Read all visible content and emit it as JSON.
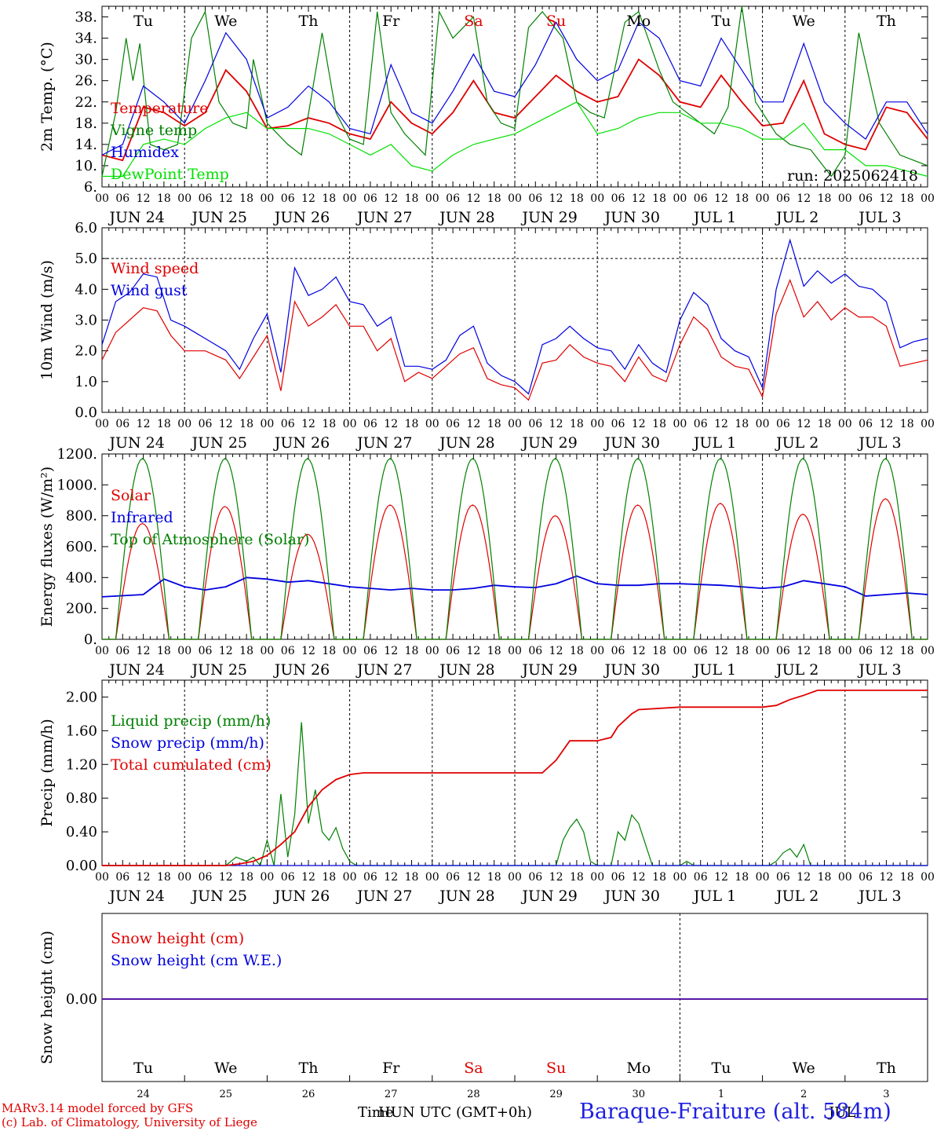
{
  "x_axis": {
    "hour_labels": [
      "00",
      "06",
      "12",
      "18"
    ],
    "date_labels": [
      "JUN 24",
      "JUN 25",
      "JUN 26",
      "JUN 27",
      "JUN 28",
      "JUN 29",
      "JUN 30",
      "JUL  1",
      "JUL  2",
      "JUL  3"
    ],
    "day_labels": [
      "Tu",
      "We",
      "Th",
      "Fr",
      "Sa",
      "Su",
      "Mo",
      "Tu",
      "We",
      "Th"
    ],
    "day_colors": [
      "#000000",
      "#000000",
      "#000000",
      "#000000",
      "#e00000",
      "#e00000",
      "#000000",
      "#000000",
      "#000000",
      "#000000"
    ],
    "day_numbers": [
      "24",
      "25",
      "26",
      "27",
      "28",
      "29",
      "30",
      "1",
      "2",
      "3"
    ],
    "overlap_title": "JUL",
    "time_title": "Time",
    "time_subtitle": "HUN UTC (GMT+0h)"
  },
  "run_label": "run: 2025062418",
  "footer": {
    "model_line": "MARv3.14 model forced by GFS",
    "lab_line": "(c) Lab. of Climatology, University of Liege",
    "station": "Baraque-Fraiture (alt. 584m)"
  },
  "colors": {
    "red": "#e00000",
    "green": "#008000",
    "blue": "#0000e0",
    "lime": "#00e000",
    "grid": "#000000"
  },
  "chart_data": [
    {
      "type": "line",
      "ylabel": "2m Temp. (°C)",
      "ylim": [
        6,
        40
      ],
      "ticks": [
        6,
        10,
        14,
        18,
        22,
        26,
        30,
        34,
        38
      ],
      "tick_labels": [
        "6.",
        "10.",
        "14.",
        "18.",
        "22.",
        "26.",
        "30.",
        "34.",
        "38."
      ],
      "x_hours_range": [
        0,
        240
      ],
      "series": [
        {
          "name": "Temperature",
          "color": "#e00000",
          "x": [
            0,
            6,
            12,
            18,
            24,
            30,
            36,
            42,
            48,
            54,
            60,
            66,
            72,
            78,
            84,
            90,
            96,
            102,
            108,
            114,
            120,
            126,
            132,
            138,
            144,
            150,
            156,
            162,
            168,
            174,
            180,
            186,
            192,
            198,
            204,
            210,
            216,
            222,
            228,
            234,
            240
          ],
          "values": [
            12,
            11,
            21,
            20,
            17.5,
            20,
            28,
            24,
            17,
            17.5,
            19,
            18,
            16,
            15,
            22,
            18,
            16,
            20,
            26,
            20,
            19,
            23,
            27,
            24,
            22,
            23,
            30,
            27,
            22,
            21,
            27,
            22,
            17.5,
            18,
            26,
            16,
            14,
            13,
            21,
            20,
            15
          ]
        },
        {
          "name": "Vigne temp",
          "color": "#008000",
          "x": [
            0,
            4,
            7,
            9,
            11,
            14,
            18,
            22,
            26,
            30,
            34,
            38,
            42,
            44,
            48,
            54,
            58,
            64,
            68,
            72,
            76,
            80,
            84,
            88,
            94,
            98,
            102,
            108,
            112,
            116,
            120,
            124,
            128,
            134,
            138,
            142,
            146,
            152,
            156,
            162,
            166,
            170,
            174,
            178,
            182,
            186,
            190,
            196,
            200,
            206,
            212,
            216,
            220,
            226,
            232,
            236,
            240
          ],
          "values": [
            8,
            20,
            34,
            26,
            33,
            14,
            13,
            14,
            34,
            39,
            22,
            18,
            17,
            30,
            18,
            14,
            12,
            35,
            20,
            15,
            14,
            39,
            20,
            16,
            12,
            39,
            34,
            38,
            22,
            18,
            17,
            36,
            39,
            34,
            22,
            20,
            19,
            37,
            39,
            28,
            22,
            20,
            18,
            16,
            21,
            40,
            22,
            16,
            14,
            13,
            8,
            12,
            35,
            18,
            12,
            11,
            10
          ]
        },
        {
          "name": "Humidex",
          "color": "#0000e0",
          "x": [
            0,
            6,
            12,
            18,
            24,
            30,
            36,
            42,
            48,
            54,
            60,
            66,
            72,
            78,
            84,
            90,
            96,
            102,
            108,
            114,
            120,
            126,
            132,
            138,
            144,
            150,
            156,
            162,
            168,
            174,
            180,
            186,
            192,
            198,
            204,
            210,
            216,
            222,
            228,
            234,
            240
          ],
          "values": [
            12,
            14,
            25,
            22,
            18,
            26,
            35,
            30,
            19,
            21,
            25,
            22,
            17,
            16,
            29,
            20,
            18,
            24,
            31,
            24,
            23,
            29,
            37,
            30,
            26,
            28,
            37,
            34,
            26,
            25,
            34,
            28,
            22,
            22,
            33,
            22,
            18,
            15,
            22,
            22,
            16
          ]
        },
        {
          "name": "DewPoint Temp",
          "color": "#00e000",
          "x": [
            0,
            6,
            12,
            18,
            24,
            30,
            36,
            42,
            48,
            54,
            60,
            66,
            72,
            78,
            84,
            90,
            96,
            102,
            108,
            114,
            120,
            126,
            132,
            138,
            144,
            150,
            156,
            162,
            168,
            174,
            180,
            186,
            192,
            198,
            204,
            210,
            216,
            222,
            228,
            234,
            240
          ],
          "values": [
            8,
            8,
            14,
            15,
            14,
            17,
            19,
            20,
            17,
            17,
            17,
            16,
            14,
            12,
            14,
            10,
            9,
            12,
            14,
            15,
            16,
            18,
            20,
            22,
            16,
            17,
            19,
            20,
            20,
            18,
            18,
            17,
            15,
            15,
            18,
            13,
            13,
            10,
            10,
            9,
            8
          ]
        }
      ]
    },
    {
      "type": "line",
      "ylabel": "10m Wind (m/s)",
      "ylim": [
        0,
        6
      ],
      "ticks": [
        0,
        1,
        2,
        3,
        4,
        5,
        6
      ],
      "tick_labels": [
        "0.0",
        "1.0",
        "2.0",
        "3.0",
        "4.0",
        "5.0",
        "6.0"
      ],
      "ref_line": 5,
      "series": [
        {
          "name": "Wind speed",
          "color": "#e00000",
          "x": [
            0,
            4,
            8,
            12,
            16,
            20,
            24,
            30,
            36,
            40,
            44,
            48,
            52,
            56,
            60,
            64,
            68,
            72,
            76,
            80,
            84,
            88,
            92,
            96,
            100,
            104,
            108,
            112,
            116,
            120,
            124,
            128,
            132,
            136,
            140,
            144,
            148,
            152,
            156,
            160,
            164,
            168,
            172,
            176,
            180,
            184,
            188,
            192,
            196,
            200,
            204,
            208,
            212,
            216,
            220,
            224,
            228,
            232,
            236,
            240
          ],
          "values": [
            1.7,
            2.6,
            3.0,
            3.4,
            3.3,
            2.5,
            2.0,
            2.0,
            1.7,
            1.1,
            1.8,
            2.5,
            0.7,
            3.6,
            2.8,
            3.1,
            3.5,
            2.8,
            2.8,
            2.0,
            2.4,
            1.0,
            1.3,
            1.1,
            1.5,
            1.9,
            2.1,
            1.1,
            0.9,
            0.8,
            0.4,
            1.6,
            1.7,
            2.2,
            1.8,
            1.6,
            1.5,
            1.0,
            1.8,
            1.2,
            1.0,
            2.2,
            3.1,
            2.7,
            1.8,
            1.5,
            1.4,
            0.5,
            3.2,
            4.3,
            3.1,
            3.6,
            3.0,
            3.4,
            3.1,
            3.1,
            2.8,
            1.5,
            1.6,
            1.7
          ]
        },
        {
          "name": "Wind gust",
          "color": "#0000e0",
          "x": [
            0,
            4,
            8,
            12,
            16,
            20,
            24,
            30,
            36,
            40,
            44,
            48,
            52,
            56,
            60,
            64,
            68,
            72,
            76,
            80,
            84,
            88,
            92,
            96,
            100,
            104,
            108,
            112,
            116,
            120,
            124,
            128,
            132,
            136,
            140,
            144,
            148,
            152,
            156,
            160,
            164,
            168,
            172,
            176,
            180,
            184,
            188,
            192,
            196,
            200,
            204,
            208,
            212,
            216,
            220,
            224,
            228,
            232,
            236,
            240
          ],
          "values": [
            2.2,
            3.6,
            3.9,
            4.5,
            4.4,
            3.0,
            2.8,
            2.4,
            2.0,
            1.4,
            2.4,
            3.2,
            1.3,
            4.7,
            3.8,
            4.0,
            4.4,
            3.6,
            3.5,
            2.8,
            3.1,
            1.5,
            1.5,
            1.4,
            1.7,
            2.5,
            2.8,
            1.6,
            1.2,
            1.0,
            0.6,
            2.2,
            2.4,
            2.8,
            2.4,
            2.1,
            2.0,
            1.4,
            2.2,
            1.6,
            1.3,
            3.0,
            3.9,
            3.5,
            2.4,
            2.0,
            1.8,
            0.8,
            4.0,
            5.6,
            4.1,
            4.6,
            4.2,
            4.5,
            4.1,
            4.0,
            3.6,
            2.1,
            2.3,
            2.4
          ]
        }
      ]
    },
    {
      "type": "line",
      "ylabel": "Energy fluxes (W/m²)",
      "ylim": [
        0,
        1200
      ],
      "ticks": [
        0,
        200,
        400,
        600,
        800,
        1000,
        1200
      ],
      "tick_labels": [
        "0.",
        "200.",
        "400.",
        "600.",
        "800.",
        "1000.",
        "1200."
      ],
      "daylight_start_hour": 4,
      "daylight_end_hour": 19.5,
      "series": [
        {
          "name": "Solar",
          "color": "#e00000",
          "daily_peaks": [
            750,
            860,
            680,
            870,
            870,
            800,
            870,
            880,
            810,
            910
          ]
        },
        {
          "name": "Infrared",
          "color": "#0000e0",
          "x": [
            0,
            12,
            18,
            24,
            30,
            36,
            42,
            48,
            54,
            60,
            66,
            72,
            78,
            84,
            90,
            96,
            102,
            108,
            114,
            120,
            126,
            132,
            138,
            144,
            150,
            156,
            162,
            168,
            174,
            180,
            186,
            192,
            198,
            204,
            210,
            216,
            222,
            228,
            234,
            240
          ],
          "values": [
            275,
            290,
            390,
            340,
            320,
            340,
            400,
            390,
            370,
            380,
            360,
            340,
            330,
            320,
            330,
            320,
            320,
            330,
            350,
            340,
            335,
            360,
            410,
            360,
            350,
            350,
            360,
            360,
            355,
            350,
            340,
            330,
            340,
            380,
            360,
            340,
            280,
            290,
            300,
            290
          ]
        },
        {
          "name": "Top of Atmosphere (Solar)",
          "color": "#008000",
          "daily_peaks": [
            1170,
            1170,
            1170,
            1170,
            1170,
            1170,
            1170,
            1170,
            1170,
            1170
          ]
        }
      ]
    },
    {
      "type": "line",
      "ylabel": "Precip (mm/h)",
      "ylim": [
        0,
        2.2
      ],
      "ticks": [
        0,
        0.4,
        0.8,
        1.2,
        1.6,
        2.0
      ],
      "tick_labels": [
        "0.00",
        "0.40",
        "0.80",
        "1.20",
        "1.60",
        "2.00"
      ],
      "series": [
        {
          "name": "Liquid precip (mm/h)",
          "color": "#008000",
          "x": [
            0,
            36,
            39,
            42,
            44,
            46,
            48,
            50,
            52,
            54,
            56,
            58,
            60,
            62,
            64,
            66,
            68,
            70,
            72,
            74,
            132,
            134,
            136,
            138,
            140,
            142,
            144,
            148,
            150,
            152,
            154,
            156,
            158,
            160,
            162,
            168,
            170,
            172,
            174,
            176,
            194,
            196,
            198,
            200,
            202,
            204,
            206,
            208,
            240
          ],
          "values": [
            0,
            0,
            0.1,
            0.05,
            0.1,
            0,
            0.3,
            0,
            0.85,
            0.1,
            0.6,
            1.7,
            0.5,
            0.9,
            0.4,
            0.3,
            0.45,
            0.2,
            0.05,
            0,
            0,
            0.3,
            0.45,
            0.55,
            0.4,
            0.05,
            0,
            0,
            0.4,
            0.3,
            0.6,
            0.5,
            0.25,
            0,
            0,
            0,
            0.05,
            0,
            0,
            0,
            0,
            0.05,
            0.15,
            0.2,
            0.1,
            0.25,
            0,
            0,
            0
          ]
        },
        {
          "name": "Snow precip (mm/h)",
          "color": "#0000e0",
          "x": [
            0,
            240
          ],
          "values": [
            0,
            0
          ]
        },
        {
          "name": "Total cumulated (cm)",
          "color": "#e00000",
          "x": [
            0,
            36,
            40,
            44,
            48,
            52,
            56,
            60,
            64,
            68,
            72,
            76,
            80,
            96,
            120,
            128,
            132,
            136,
            144,
            148,
            150,
            154,
            156,
            168,
            180,
            192,
            196,
            200,
            204,
            208,
            240
          ],
          "values": [
            0,
            0,
            0.02,
            0.05,
            0.12,
            0.25,
            0.4,
            0.7,
            0.9,
            1.02,
            1.08,
            1.1,
            1.1,
            1.1,
            1.1,
            1.1,
            1.25,
            1.48,
            1.48,
            1.52,
            1.65,
            1.8,
            1.85,
            1.88,
            1.88,
            1.88,
            1.9,
            1.97,
            2.02,
            2.08,
            2.08
          ]
        }
      ]
    },
    {
      "type": "line",
      "ylabel": "Snow height (cm)",
      "tick_labels": [
        "0.00"
      ],
      "series": [
        {
          "name": "Snow height (cm)",
          "color": "#e00000",
          "x": [
            0,
            240
          ],
          "values": [
            0,
            0
          ]
        },
        {
          "name": "Snow height (cm W.E.)",
          "color": "#0000e0",
          "x": [
            0,
            240
          ],
          "values": [
            0,
            0
          ]
        }
      ]
    }
  ]
}
